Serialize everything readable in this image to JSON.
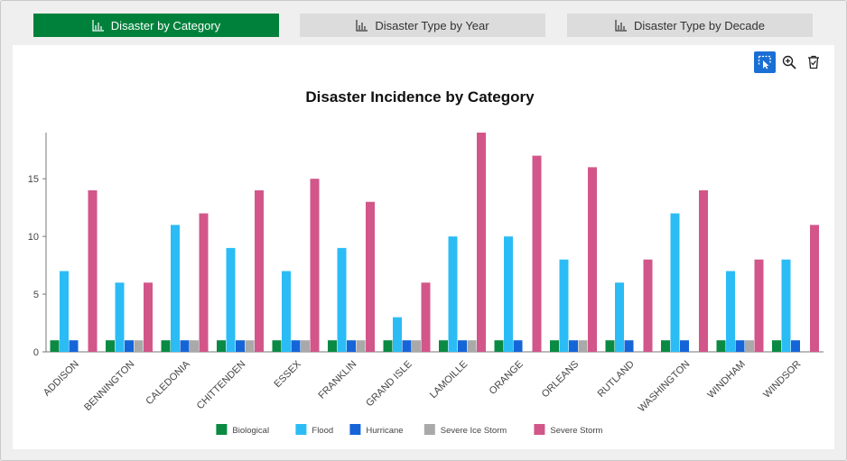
{
  "tabs": [
    {
      "label": "Disaster by Category",
      "active": true
    },
    {
      "label": "Disaster Type by Year",
      "active": false
    },
    {
      "label": "Disaster Type by Decade",
      "active": false
    }
  ],
  "toolbar": {
    "icons": [
      "select-cursor-icon",
      "zoom-in-icon",
      "clear-selection-icon"
    ]
  },
  "colors": {
    "accent": "#00813b",
    "tool_active": "#1a6fd4"
  },
  "chart_data": {
    "type": "bar",
    "title": "Disaster Incidence by Category",
    "xlabel": "",
    "ylabel": "",
    "ylim": [
      0,
      19
    ],
    "yticks": [
      0,
      5,
      10,
      15
    ],
    "grid": false,
    "legend_position": "bottom",
    "categories": [
      "ADDISON",
      "BENNINGTON",
      "CALEDONIA",
      "CHITTENDEN",
      "ESSEX",
      "FRANKLIN",
      "GRAND ISLE",
      "LAMOILLE",
      "ORANGE",
      "ORLEANS",
      "RUTLAND",
      "WASHINGTON",
      "WINDHAM",
      "WINDSOR"
    ],
    "series": [
      {
        "name": "Biological",
        "color": "#0a8a43",
        "values": [
          1,
          1,
          1,
          1,
          1,
          1,
          1,
          1,
          1,
          1,
          1,
          1,
          1,
          1
        ]
      },
      {
        "name": "Flood",
        "color": "#2bbcf5",
        "values": [
          7,
          6,
          11,
          9,
          7,
          9,
          3,
          10,
          10,
          8,
          6,
          12,
          7,
          8
        ]
      },
      {
        "name": "Hurricane",
        "color": "#1565d8",
        "values": [
          1,
          1,
          1,
          1,
          1,
          1,
          1,
          1,
          1,
          1,
          1,
          1,
          1,
          1
        ]
      },
      {
        "name": "Severe Ice Storm",
        "color": "#a9a9a9",
        "values": [
          0,
          1,
          1,
          1,
          1,
          1,
          1,
          1,
          0,
          1,
          0,
          0,
          1,
          0
        ]
      },
      {
        "name": "Severe Storm",
        "color": "#d2568a",
        "values": [
          14,
          6,
          12,
          14,
          15,
          13,
          6,
          19,
          17,
          16,
          8,
          14,
          8,
          11
        ]
      }
    ]
  }
}
